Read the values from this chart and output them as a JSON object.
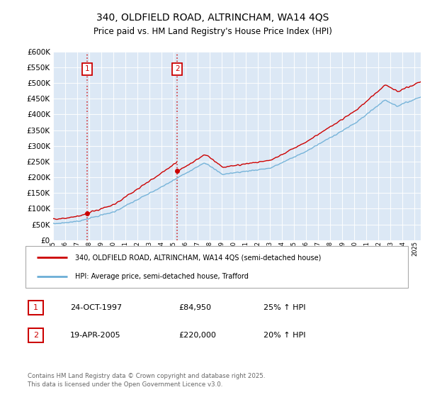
{
  "title_line1": "340, OLDFIELD ROAD, ALTRINCHAM, WA14 4QS",
  "title_line2": "Price paid vs. HM Land Registry's House Price Index (HPI)",
  "ytick_values": [
    0,
    50000,
    100000,
    150000,
    200000,
    250000,
    300000,
    350000,
    400000,
    450000,
    500000,
    550000,
    600000
  ],
  "plot_bg_color": "#dce8f5",
  "hpi_line_color": "#6baed6",
  "price_line_color": "#cc0000",
  "sale1_date_x": 1997.82,
  "sale1_price": 84950,
  "sale1_label": "1",
  "sale2_date_x": 2005.3,
  "sale2_price": 220000,
  "sale2_label": "2",
  "vline_color": "#cc0000",
  "legend_price_label": "340, OLDFIELD ROAD, ALTRINCHAM, WA14 4QS (semi-detached house)",
  "legend_hpi_label": "HPI: Average price, semi-detached house, Trafford",
  "table_row1": [
    "1",
    "24-OCT-1997",
    "£84,950",
    "25% ↑ HPI"
  ],
  "table_row2": [
    "2",
    "19-APR-2005",
    "£220,000",
    "20% ↑ HPI"
  ],
  "footnote": "Contains HM Land Registry data © Crown copyright and database right 2025.\nThis data is licensed under the Open Government Licence v3.0.",
  "xmin": 1995,
  "xmax": 2025.5,
  "ymin": 0,
  "ymax": 600000
}
